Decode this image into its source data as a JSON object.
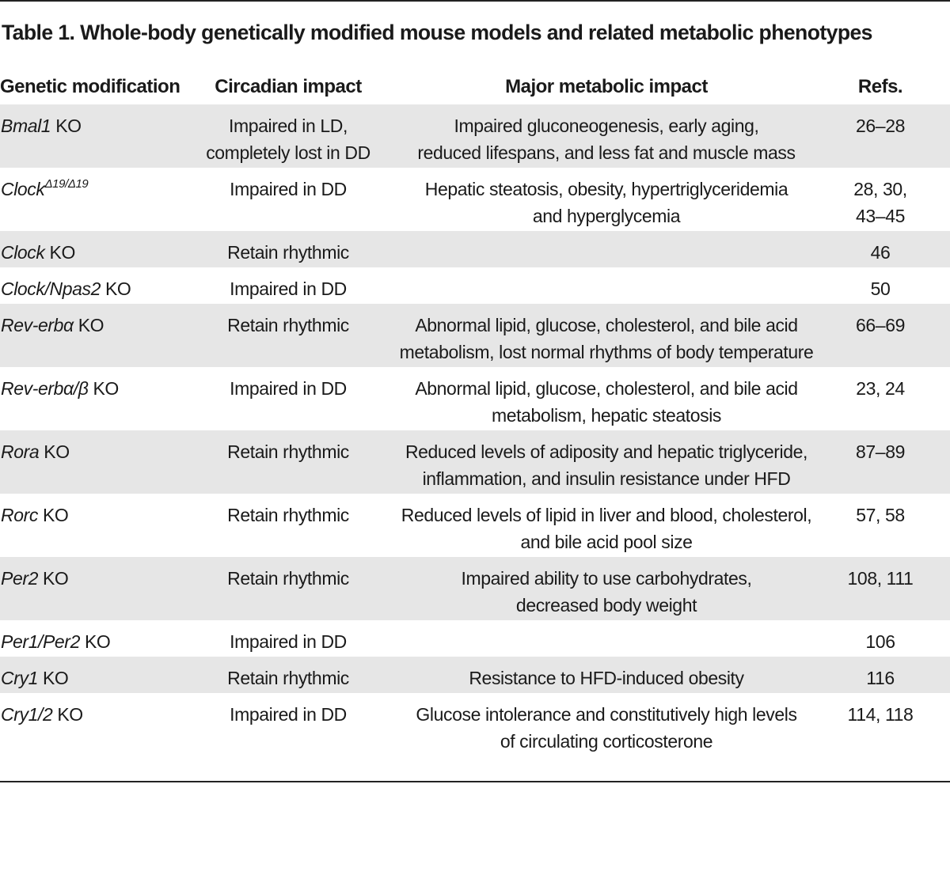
{
  "title": "Table 1. Whole-body genetically modified mouse models and related metabolic phenotypes",
  "columns": {
    "modification": "Genetic modification",
    "circadian": "Circadian impact",
    "metabolic": "Major metabolic impact",
    "refs": "Refs."
  },
  "rows": [
    {
      "gene": "Bmal1",
      "gene_suffix": " KO",
      "circadian_lines": [
        "Impaired in LD,",
        "completely lost in DD"
      ],
      "metabolic_lines": [
        "Impaired gluconeogenesis, early aging,",
        "reduced lifespans, and less fat and muscle mass"
      ],
      "refs_lines": [
        "26–28"
      ]
    },
    {
      "gene": "Clock",
      "gene_sup": "Δ19/Δ19",
      "gene_suffix": "",
      "circadian_lines": [
        "Impaired in DD"
      ],
      "metabolic_lines": [
        "Hepatic steatosis, obesity, hypertriglyceridemia",
        "and hyperglycemia"
      ],
      "refs_lines": [
        "28, 30,",
        "43–45"
      ]
    },
    {
      "gene": "Clock",
      "gene_suffix": " KO",
      "circadian_lines": [
        "Retain rhythmic"
      ],
      "metabolic_lines": [
        ""
      ],
      "refs_lines": [
        "46"
      ]
    },
    {
      "gene": "Clock/Npas2",
      "gene_suffix": " KO",
      "circadian_lines": [
        "Impaired in DD"
      ],
      "metabolic_lines": [
        ""
      ],
      "refs_lines": [
        "50"
      ]
    },
    {
      "gene": "Rev-erbα",
      "gene_suffix": " KO",
      "circadian_lines": [
        "Retain rhythmic"
      ],
      "metabolic_lines": [
        "Abnormal lipid, glucose, cholesterol, and bile acid",
        "metabolism, lost normal rhythms of body temperature"
      ],
      "refs_lines": [
        "66–69"
      ]
    },
    {
      "gene": "Rev-erbα/β",
      "gene_suffix": " KO",
      "circadian_lines": [
        "Impaired in DD"
      ],
      "metabolic_lines": [
        "Abnormal lipid, glucose, cholesterol, and bile acid",
        "metabolism, hepatic steatosis"
      ],
      "refs_lines": [
        "23, 24"
      ]
    },
    {
      "gene": "Rora",
      "gene_suffix": " KO",
      "circadian_lines": [
        "Retain rhythmic"
      ],
      "metabolic_lines": [
        "Reduced levels of adiposity and hepatic triglyceride,",
        "inflammation, and insulin resistance under HFD"
      ],
      "refs_lines": [
        "87–89"
      ]
    },
    {
      "gene": "Rorc",
      "gene_suffix": " KO",
      "circadian_lines": [
        "Retain rhythmic"
      ],
      "metabolic_lines": [
        "Reduced levels of lipid in liver and blood, cholesterol,",
        "and bile acid pool size"
      ],
      "refs_lines": [
        "57, 58"
      ]
    },
    {
      "gene": "Per2",
      "gene_suffix": " KO",
      "circadian_lines": [
        "Retain rhythmic"
      ],
      "metabolic_lines": [
        "Impaired ability to use carbohydrates,",
        "decreased body weight"
      ],
      "refs_lines": [
        "108, 111"
      ]
    },
    {
      "gene": "Per1/Per2",
      "gene_suffix": " KO",
      "circadian_lines": [
        "Impaired in DD"
      ],
      "metabolic_lines": [
        ""
      ],
      "refs_lines": [
        "106"
      ]
    },
    {
      "gene": "Cry1",
      "gene_suffix": " KO",
      "circadian_lines": [
        "Retain rhythmic"
      ],
      "metabolic_lines": [
        "Resistance to HFD-induced obesity"
      ],
      "refs_lines": [
        "116"
      ]
    },
    {
      "gene": "Cry1/2",
      "gene_suffix": " KO",
      "circadian_lines": [
        "Impaired in DD"
      ],
      "metabolic_lines": [
        "Glucose intolerance and constitutively high levels",
        "of circulating corticosterone"
      ],
      "refs_lines": [
        "114, 118"
      ]
    }
  ],
  "colors": {
    "shaded_row": "#e6e6e6",
    "text": "#1a1a1a",
    "rule": "#222222"
  }
}
